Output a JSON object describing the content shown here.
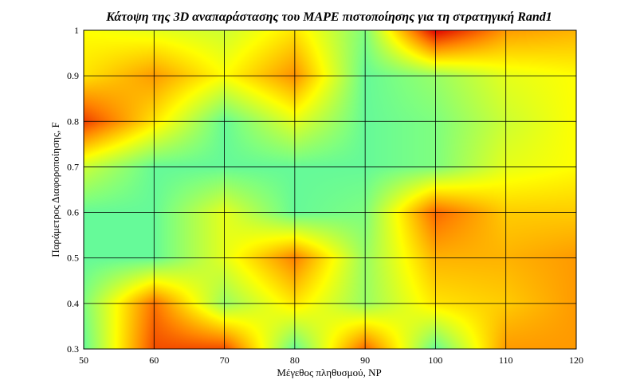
{
  "chart_data": {
    "type": "heatmap",
    "title": "Κάτοψη της 3D αναπαράστασης του MAPE πιστοποίησης για τη στρατηγική Rand1",
    "xlabel": "Μέγεθος πληθυσμού, NP",
    "ylabel": "Παράμετρος Διαφοροποίησης, F",
    "x": [
      50,
      60,
      70,
      80,
      90,
      100,
      110,
      120
    ],
    "y": [
      0.3,
      0.4,
      0.5,
      0.6,
      0.7,
      0.8,
      0.9,
      1.0
    ],
    "xlim": [
      50,
      120
    ],
    "ylim": [
      0.3,
      1.0
    ],
    "xticks": [
      "50",
      "60",
      "70",
      "80",
      "90",
      "100",
      "110",
      "120"
    ],
    "yticks": [
      "0.3",
      "0.4",
      "0.5",
      "0.6",
      "0.7",
      "0.8",
      "0.9",
      "1"
    ],
    "z": [
      [
        0.2,
        0.85,
        0.85,
        0.2,
        0.8,
        0.2,
        0.7,
        0.7
      ],
      [
        0.25,
        0.78,
        0.3,
        0.55,
        0.3,
        0.55,
        0.6,
        0.7
      ],
      [
        0.2,
        0.2,
        0.45,
        0.75,
        0.3,
        0.65,
        0.65,
        0.7
      ],
      [
        0.2,
        0.2,
        0.45,
        0.2,
        0.25,
        0.8,
        0.6,
        0.6
      ],
      [
        0.4,
        0.2,
        0.2,
        0.2,
        0.2,
        0.25,
        0.45,
        0.5
      ],
      [
        0.88,
        0.55,
        0.2,
        0.45,
        0.2,
        0.25,
        0.4,
        0.5
      ],
      [
        0.55,
        0.7,
        0.5,
        0.72,
        0.2,
        0.3,
        0.45,
        0.5
      ],
      [
        0.5,
        0.45,
        0.4,
        0.55,
        0.25,
        1.0,
        0.7,
        0.65
      ]
    ],
    "colormap": [
      "#00e5ff",
      "#7fff7f",
      "#ffff00",
      "#ff8000",
      "#e00000"
    ],
    "grid": true
  }
}
